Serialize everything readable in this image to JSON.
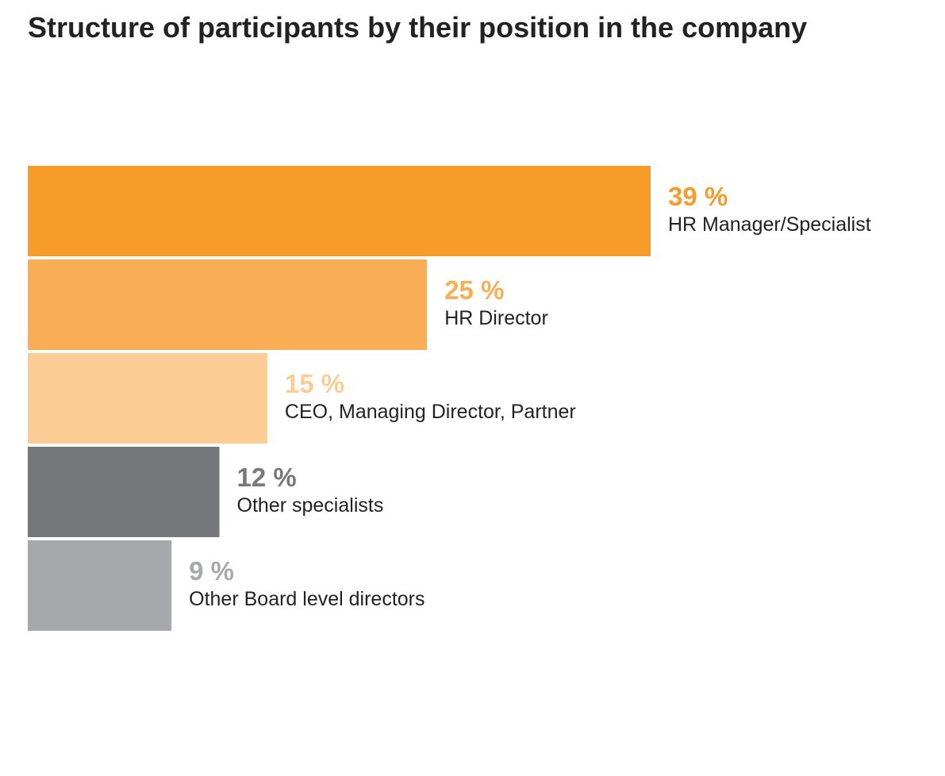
{
  "chart_data": {
    "type": "bar",
    "orientation": "horizontal",
    "title": "Structure of participants by their position in the company",
    "categories": [
      "HR Manager/Specialist",
      "HR Director",
      "CEO, Managing Director, Partner",
      "Other specialists",
      "Other Board level directors"
    ],
    "values": [
      39,
      25,
      15,
      12,
      9
    ],
    "value_labels": [
      "39 %",
      "25 %",
      "15 %",
      "12 %",
      "9 %"
    ],
    "unit": "%",
    "colors": [
      "#f79c29",
      "#f9ae55",
      "#fbcd94",
      "#77787b",
      "#a7a8ab"
    ],
    "xlabel": "",
    "ylabel": "",
    "grid": false,
    "legend": "none"
  }
}
